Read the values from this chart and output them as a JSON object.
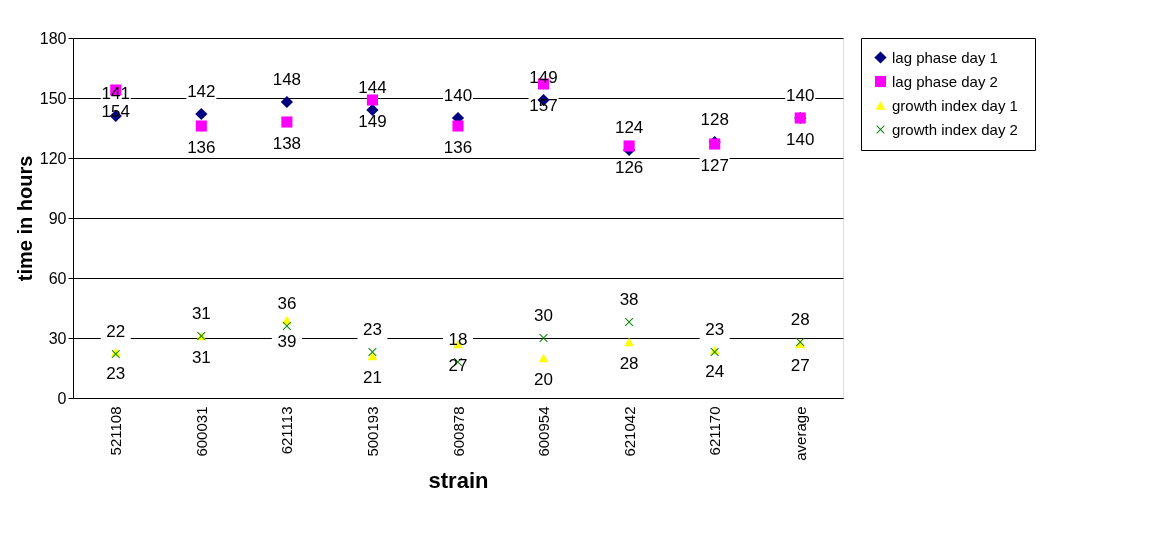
{
  "chart_data": {
    "type": "scatter",
    "xlabel": "strain",
    "ylabel": "time in hours",
    "categories": [
      "521108",
      "600031",
      "621113",
      "500193",
      "600878",
      "600954",
      "621042",
      "621170",
      "average"
    ],
    "series": [
      {
        "name": "lag phase   day 1",
        "color": "#000080",
        "marker": "diamond",
        "values": [
          141,
          142,
          148,
          144,
          140,
          149,
          124,
          128,
          140
        ]
      },
      {
        "name": "lag phase   day 2",
        "color": "#ff00ff",
        "marker": "square",
        "values": [
          154,
          136,
          138,
          149,
          136,
          157,
          126,
          127,
          140
        ]
      },
      {
        "name": "growth index  day 1",
        "color": "#ffff00",
        "marker": "triangle",
        "values": [
          23,
          31,
          39,
          21,
          27,
          20,
          28,
          24,
          27
        ]
      },
      {
        "name": "growth index  day 2",
        "color": "#008000",
        "marker": "cross",
        "values": [
          22,
          31,
          36,
          23,
          18,
          30,
          38,
          23,
          28
        ]
      }
    ],
    "ylim": [
      0,
      180
    ],
    "yticks": [
      0,
      30,
      60,
      90,
      120,
      150,
      180
    ],
    "grid": "y",
    "legend": "right",
    "data_labels": true
  }
}
